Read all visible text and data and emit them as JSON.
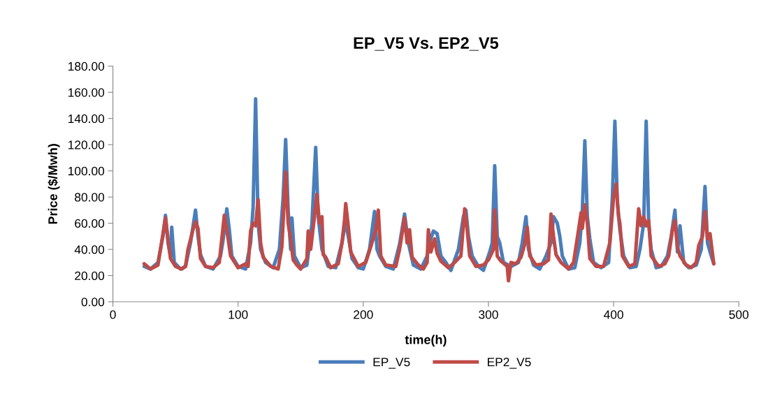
{
  "chart_data": {
    "type": "line",
    "title": "EP_V5 Vs. EP2_V5",
    "xlabel": "time(h)",
    "ylabel": "Price ($/Mwh)",
    "xlim": [
      0,
      500
    ],
    "xticks": [
      0,
      100,
      200,
      300,
      400,
      500
    ],
    "ylim": [
      0,
      180
    ],
    "yticks": [
      {
        "value": 0,
        "label": "0.00"
      },
      {
        "value": 20,
        "label": "20.00"
      },
      {
        "value": 40,
        "label": "40.00"
      },
      {
        "value": 60,
        "label": "60.00"
      },
      {
        "value": 80,
        "label": "80.00"
      },
      {
        "value": 100,
        "label": "100.00"
      },
      {
        "value": 120,
        "label": "120.00"
      },
      {
        "value": 140,
        "label": "140.00"
      },
      {
        "value": 160,
        "label": "160.00"
      },
      {
        "value": 180,
        "label": "180.00"
      }
    ],
    "grid": false,
    "legend": "bottom",
    "marker": "none",
    "line_style": "solid",
    "series": [
      {
        "name": "EP_V5",
        "color": "#4a7ebb",
        "x": [
          25,
          30,
          36,
          40,
          42,
          44,
          46,
          47,
          49,
          54,
          58,
          62,
          66,
          68,
          70,
          74,
          80,
          86,
          88,
          91,
          93,
          95,
          100,
          106,
          110,
          112,
          114,
          116,
          118,
          122,
          128,
          133,
          136,
          138,
          140,
          142,
          143,
          145,
          150,
          155,
          159,
          162,
          164,
          167,
          172,
          178,
          183,
          186,
          188,
          191,
          196,
          200,
          205,
          209,
          211,
          213,
          218,
          224,
          229,
          233,
          236,
          240,
          246,
          251,
          254,
          256,
          259,
          262,
          266,
          270,
          276,
          280,
          282,
          284,
          287,
          292,
          296,
          301,
          303,
          305,
          307,
          309,
          312,
          318,
          324,
          327,
          330,
          332,
          336,
          341,
          346,
          350,
          352,
          355,
          357,
          359,
          364,
          369,
          373,
          375,
          377,
          379,
          381,
          384,
          390,
          396,
          399,
          401,
          403,
          405,
          408,
          413,
          418,
          421,
          424,
          426,
          428,
          430,
          434,
          438,
          443,
          446,
          449,
          451,
          453,
          456,
          460,
          466,
          470,
          473,
          475,
          478,
          480
        ],
        "values": [
          27,
          25,
          30,
          50,
          66,
          45,
          35,
          57,
          30,
          25,
          27,
          45,
          70,
          50,
          36,
          27,
          25,
          35,
          47,
          71,
          55,
          35,
          27,
          25,
          45,
          72,
          155,
          60,
          40,
          30,
          26,
          40,
          80,
          124,
          70,
          40,
          64,
          35,
          26,
          28,
          60,
          118,
          65,
          40,
          27,
          26,
          45,
          62,
          50,
          33,
          26,
          25,
          40,
          69,
          40,
          35,
          27,
          25,
          44,
          67,
          45,
          28,
          25,
          35,
          48,
          54,
          52,
          35,
          30,
          24,
          40,
          65,
          70,
          50,
          35,
          27,
          24,
          38,
          45,
          104,
          50,
          45,
          30,
          27,
          30,
          45,
          65,
          40,
          28,
          25,
          35,
          45,
          65,
          60,
          50,
          35,
          25,
          26,
          45,
          70,
          123,
          65,
          48,
          30,
          26,
          30,
          80,
          138,
          75,
          55,
          35,
          26,
          27,
          40,
          60,
          138,
          60,
          40,
          26,
          27,
          35,
          50,
          70,
          38,
          58,
          30,
          26,
          28,
          40,
          88,
          45,
          35,
          29
        ]
      },
      {
        "name": "EP2_V5",
        "color": "#be4b48",
        "x": [
          25,
          30,
          36,
          38,
          42,
          44,
          46,
          50,
          55,
          58,
          60,
          64,
          66,
          68,
          70,
          74,
          80,
          85,
          89,
          91,
          94,
          100,
          106,
          108,
          110,
          112,
          114,
          116,
          118,
          120,
          126,
          132,
          135,
          138,
          140,
          142,
          144,
          147,
          150,
          155,
          156,
          158,
          161,
          163,
          165,
          167,
          168,
          170,
          174,
          180,
          183,
          185,
          186,
          188,
          190,
          196,
          202,
          206,
          210,
          212,
          214,
          218,
          226,
          229,
          233,
          235,
          237,
          239,
          244,
          248,
          251,
          252,
          254,
          257,
          259,
          262,
          268,
          273,
          278,
          281,
          283,
          285,
          290,
          296,
          300,
          304,
          305,
          307,
          310,
          315,
          316,
          318,
          322,
          326,
          329,
          331,
          333,
          338,
          344,
          348,
          350,
          352,
          354,
          358,
          364,
          368,
          372,
          374,
          375,
          377,
          379,
          381,
          386,
          392,
          397,
          400,
          402,
          404,
          405,
          407,
          412,
          417,
          420,
          422,
          424,
          426,
          428,
          430,
          436,
          441,
          444,
          447,
          449,
          451,
          453,
          458,
          462,
          466,
          468,
          471,
          473,
          475,
          477,
          480
        ],
        "values": [
          29,
          25,
          28,
          40,
          64,
          48,
          33,
          27,
          25,
          27,
          40,
          55,
          61,
          56,
          33,
          27,
          26,
          30,
          66,
          55,
          35,
          26,
          29,
          27,
          54,
          60,
          58,
          78,
          45,
          34,
          27,
          25,
          42,
          99,
          60,
          48,
          32,
          28,
          25,
          33,
          54,
          40,
          65,
          82,
          60,
          65,
          36,
          34,
          26,
          29,
          45,
          62,
          75,
          58,
          38,
          27,
          30,
          42,
          55,
          70,
          35,
          28,
          27,
          40,
          64,
          45,
          55,
          34,
          28,
          25,
          30,
          55,
          38,
          48,
          37,
          31,
          26,
          30,
          35,
          71,
          55,
          35,
          27,
          28,
          32,
          40,
          70,
          35,
          31,
          27,
          16,
          30,
          29,
          34,
          44,
          57,
          35,
          28,
          29,
          32,
          67,
          50,
          36,
          30,
          25,
          30,
          55,
          68,
          56,
          74,
          60,
          33,
          27,
          27,
          45,
          80,
          90,
          65,
          60,
          35,
          27,
          29,
          71,
          58,
          65,
          58,
          62,
          35,
          27,
          29,
          35,
          55,
          62,
          42,
          35,
          28,
          26,
          30,
          43,
          50,
          69,
          48,
          52,
          29
        ]
      }
    ]
  }
}
